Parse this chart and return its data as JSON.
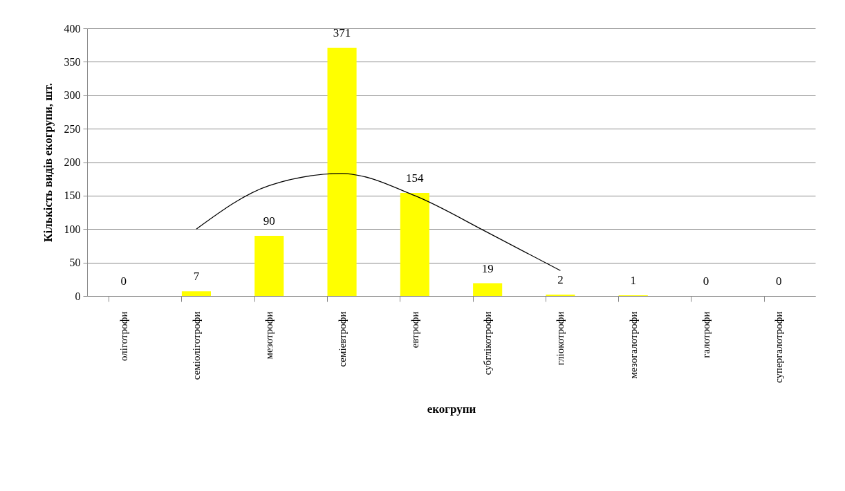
{
  "chart_data": {
    "type": "bar",
    "xlabel": "екогрупи",
    "ylabel": "Кількість  видів екогрупи,  шт.",
    "categories": [
      "оліготрофи",
      "семіоліготрофи",
      "мезотрофи",
      "семіевтрофи",
      "евтрофи",
      "субглікотрофи",
      "гліокотрофи",
      "мезогалотрофи",
      "галотрофи",
      "супергалотрофи"
    ],
    "series": [
      {
        "color": "#ffff00",
        "values": [
          0,
          7,
          90,
          371,
          154,
          19,
          2,
          1,
          0,
          0
        ],
        "value_labels": [
          "0",
          "7",
          "90",
          "371",
          "154",
          "19",
          "2",
          "1",
          "0",
          "0"
        ]
      },
      {
        "type": "line",
        "color": "#000000",
        "values": [
          null,
          100,
          165,
          183,
          150,
          95,
          38,
          null,
          null,
          null
        ]
      }
    ],
    "ylim": [
      0,
      400
    ],
    "yticks": [
      0,
      50,
      100,
      150,
      200,
      250,
      300,
      350,
      400
    ],
    "grid": "y"
  }
}
